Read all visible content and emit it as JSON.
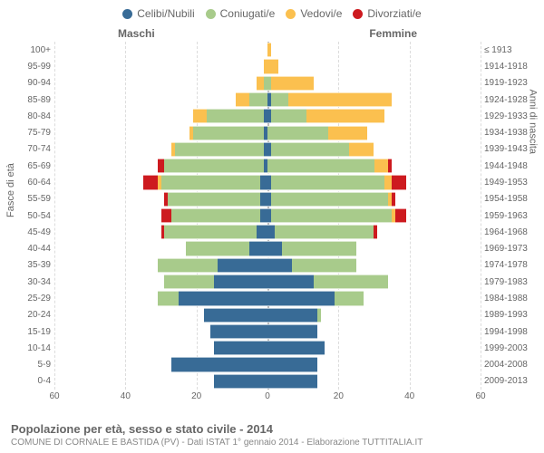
{
  "legend": [
    {
      "label": "Celibi/Nubili",
      "color": "#386b96"
    },
    {
      "label": "Coniugati/e",
      "color": "#a8cb8b"
    },
    {
      "label": "Vedovi/e",
      "color": "#fbc04f"
    },
    {
      "label": "Divorziati/e",
      "color": "#cd1a1f"
    }
  ],
  "headers": {
    "left": "Maschi",
    "right": "Femmine"
  },
  "axis_labels": {
    "left": "Fasce di età",
    "right": "Anni di nascita"
  },
  "x_max": 60,
  "x_ticks": [
    60,
    40,
    20,
    0,
    20,
    40,
    60
  ],
  "colors": {
    "single": "#386b96",
    "married": "#a8cb8b",
    "widowed": "#fbc04f",
    "divorced": "#cd1a1f",
    "grid": "#dcdcdc",
    "center": "#bdbdbd",
    "background": "#ffffff",
    "text": "#666666"
  },
  "rows": [
    {
      "age": "0-4",
      "birth": "2009-2013",
      "m": {
        "s": 15,
        "c": 0,
        "w": 0,
        "d": 0
      },
      "f": {
        "s": 14,
        "c": 0,
        "w": 0,
        "d": 0
      }
    },
    {
      "age": "5-9",
      "birth": "2004-2008",
      "m": {
        "s": 27,
        "c": 0,
        "w": 0,
        "d": 0
      },
      "f": {
        "s": 14,
        "c": 0,
        "w": 0,
        "d": 0
      }
    },
    {
      "age": "10-14",
      "birth": "1999-2003",
      "m": {
        "s": 15,
        "c": 0,
        "w": 0,
        "d": 0
      },
      "f": {
        "s": 16,
        "c": 0,
        "w": 0,
        "d": 0
      }
    },
    {
      "age": "15-19",
      "birth": "1994-1998",
      "m": {
        "s": 16,
        "c": 0,
        "w": 0,
        "d": 0
      },
      "f": {
        "s": 14,
        "c": 0,
        "w": 0,
        "d": 0
      }
    },
    {
      "age": "20-24",
      "birth": "1989-1993",
      "m": {
        "s": 18,
        "c": 0,
        "w": 0,
        "d": 0
      },
      "f": {
        "s": 14,
        "c": 1,
        "w": 0,
        "d": 0
      }
    },
    {
      "age": "25-29",
      "birth": "1984-1988",
      "m": {
        "s": 25,
        "c": 6,
        "w": 0,
        "d": 0
      },
      "f": {
        "s": 19,
        "c": 8,
        "w": 0,
        "d": 0
      }
    },
    {
      "age": "30-34",
      "birth": "1979-1983",
      "m": {
        "s": 15,
        "c": 14,
        "w": 0,
        "d": 0
      },
      "f": {
        "s": 13,
        "c": 21,
        "w": 0,
        "d": 0
      }
    },
    {
      "age": "35-39",
      "birth": "1974-1978",
      "m": {
        "s": 14,
        "c": 17,
        "w": 0,
        "d": 0
      },
      "f": {
        "s": 7,
        "c": 18,
        "w": 0,
        "d": 0
      }
    },
    {
      "age": "40-44",
      "birth": "1969-1973",
      "m": {
        "s": 5,
        "c": 18,
        "w": 0,
        "d": 0
      },
      "f": {
        "s": 4,
        "c": 21,
        "w": 0,
        "d": 0
      }
    },
    {
      "age": "45-49",
      "birth": "1964-1968",
      "m": {
        "s": 3,
        "c": 26,
        "w": 0,
        "d": 1
      },
      "f": {
        "s": 2,
        "c": 28,
        "w": 0,
        "d": 1
      }
    },
    {
      "age": "50-54",
      "birth": "1959-1963",
      "m": {
        "s": 2,
        "c": 25,
        "w": 0,
        "d": 3
      },
      "f": {
        "s": 1,
        "c": 34,
        "w": 1,
        "d": 3
      }
    },
    {
      "age": "55-59",
      "birth": "1954-1958",
      "m": {
        "s": 2,
        "c": 26,
        "w": 0,
        "d": 1
      },
      "f": {
        "s": 1,
        "c": 33,
        "w": 1,
        "d": 1
      }
    },
    {
      "age": "60-64",
      "birth": "1949-1953",
      "m": {
        "s": 2,
        "c": 28,
        "w": 1,
        "d": 4
      },
      "f": {
        "s": 1,
        "c": 32,
        "w": 2,
        "d": 4
      }
    },
    {
      "age": "65-69",
      "birth": "1944-1948",
      "m": {
        "s": 1,
        "c": 28,
        "w": 0,
        "d": 2
      },
      "f": {
        "s": 0,
        "c": 30,
        "w": 4,
        "d": 1
      }
    },
    {
      "age": "70-74",
      "birth": "1939-1943",
      "m": {
        "s": 1,
        "c": 25,
        "w": 1,
        "d": 0
      },
      "f": {
        "s": 1,
        "c": 22,
        "w": 7,
        "d": 0
      }
    },
    {
      "age": "75-79",
      "birth": "1934-1938",
      "m": {
        "s": 1,
        "c": 20,
        "w": 1,
        "d": 0
      },
      "f": {
        "s": 0,
        "c": 17,
        "w": 11,
        "d": 0
      }
    },
    {
      "age": "80-84",
      "birth": "1929-1933",
      "m": {
        "s": 1,
        "c": 16,
        "w": 4,
        "d": 0
      },
      "f": {
        "s": 1,
        "c": 10,
        "w": 22,
        "d": 0
      }
    },
    {
      "age": "85-89",
      "birth": "1924-1928",
      "m": {
        "s": 0,
        "c": 5,
        "w": 4,
        "d": 0
      },
      "f": {
        "s": 1,
        "c": 5,
        "w": 29,
        "d": 0
      }
    },
    {
      "age": "90-94",
      "birth": "1919-1923",
      "m": {
        "s": 0,
        "c": 1,
        "w": 2,
        "d": 0
      },
      "f": {
        "s": 0,
        "c": 1,
        "w": 12,
        "d": 0
      }
    },
    {
      "age": "95-99",
      "birth": "1914-1918",
      "m": {
        "s": 0,
        "c": 0,
        "w": 1,
        "d": 0
      },
      "f": {
        "s": 0,
        "c": 0,
        "w": 3,
        "d": 0
      }
    },
    {
      "age": "100+",
      "birth": "≤ 1913",
      "m": {
        "s": 0,
        "c": 0,
        "w": 0,
        "d": 0
      },
      "f": {
        "s": 0,
        "c": 0,
        "w": 1,
        "d": 0
      }
    }
  ],
  "footer": {
    "title": "Popolazione per età, sesso e stato civile - 2014",
    "subtitle": "COMUNE DI CORNALE E BASTIDA (PV) - Dati ISTAT 1° gennaio 2014 - Elaborazione TUTTITALIA.IT"
  }
}
